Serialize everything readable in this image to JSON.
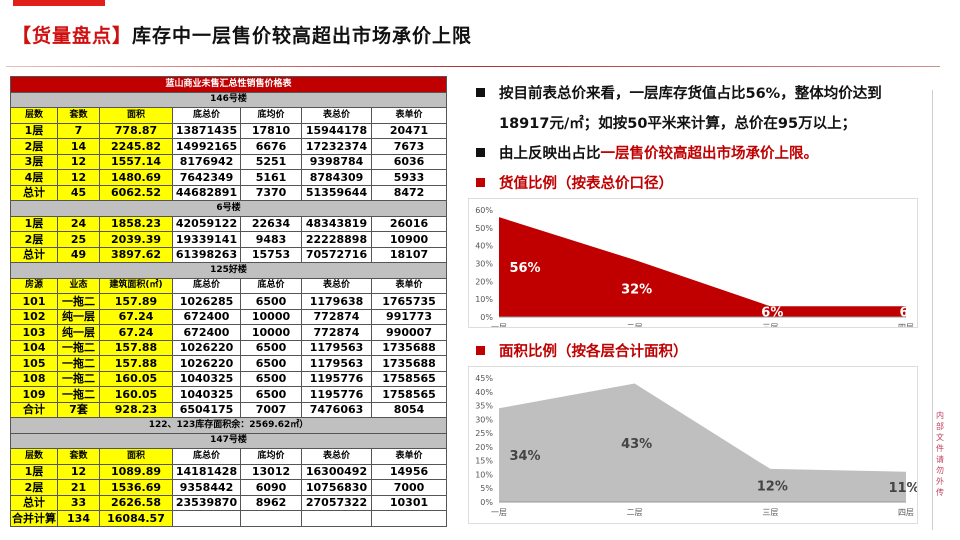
{
  "header": {
    "title_bracket": "【货量盘点】",
    "title_rest": "库存中一层售价较高超出市场承价上限"
  },
  "table": {
    "caption": "蓝山商业未售汇总性销售价格表",
    "b146": {
      "name": "146号楼",
      "headers": [
        "层数",
        "套数",
        "面积",
        "底总价",
        "底均价",
        "表总价",
        "表单价"
      ],
      "rows": [
        [
          "1层",
          "7",
          "778.87",
          "13871435",
          "17810",
          "15944178",
          "20471"
        ],
        [
          "2层",
          "14",
          "2245.82",
          "14992165",
          "6676",
          "17232374",
          "7673"
        ],
        [
          "3层",
          "12",
          "1557.14",
          "8176942",
          "5251",
          "9398784",
          "6036"
        ],
        [
          "4层",
          "12",
          "1480.69",
          "7642349",
          "5161",
          "8784309",
          "5933"
        ],
        [
          "总计",
          "45",
          "6062.52",
          "44682891",
          "7370",
          "51359644",
          "8472"
        ]
      ]
    },
    "b6": {
      "name": "6号楼",
      "rows": [
        [
          "1层",
          "24",
          "1858.23",
          "42059122",
          "22634",
          "48343819",
          "26016"
        ],
        [
          "2层",
          "25",
          "2039.39",
          "19339141",
          "9483",
          "22228898",
          "10900"
        ],
        [
          "总计",
          "49",
          "3897.62",
          "61398263",
          "15753",
          "70572716",
          "18107"
        ]
      ]
    },
    "b125": {
      "name": "125好楼",
      "headers": [
        "房源",
        "业态",
        "建筑面积(㎡)",
        "底总价",
        "底总价",
        "表总价",
        "表单价"
      ],
      "rows": [
        [
          "101",
          "一拖二",
          "157.89",
          "1026285",
          "6500",
          "1179638",
          "1765735"
        ],
        [
          "102",
          "纯一层",
          "67.24",
          "672400",
          "10000",
          "772874",
          "991773"
        ],
        [
          "103",
          "纯一层",
          "67.24",
          "672400",
          "10000",
          "772874",
          "990007"
        ],
        [
          "104",
          "一拖二",
          "157.88",
          "1026220",
          "6500",
          "1179563",
          "1735688"
        ],
        [
          "105",
          "一拖二",
          "157.88",
          "1026220",
          "6500",
          "1179563",
          "1735688"
        ],
        [
          "108",
          "一拖二",
          "160.05",
          "1040325",
          "6500",
          "1195776",
          "1758565"
        ],
        [
          "109",
          "一拖二",
          "160.05",
          "1040325",
          "6500",
          "1195776",
          "1758565"
        ],
        [
          "合计",
          "7套",
          "928.23",
          "6504175",
          "7007",
          "7476063",
          "8054"
        ]
      ],
      "note": "122、123库存面积余：2569.62㎡）"
    },
    "b147": {
      "name": "147号楼",
      "headers": [
        "层数",
        "套数",
        "面积",
        "底总价",
        "底均价",
        "表总价",
        "表单价"
      ],
      "rows": [
        [
          "1层",
          "12",
          "1089.89",
          "14181428",
          "13012",
          "16300492",
          "14956"
        ],
        [
          "2层",
          "21",
          "1536.69",
          "9358442",
          "6090",
          "10756830",
          "7000"
        ],
        [
          "总计",
          "33",
          "2626.58",
          "23539870",
          "8962",
          "27057322",
          "10301"
        ]
      ]
    },
    "combined": [
      "合并计算",
      "134",
      "16084.57"
    ]
  },
  "bullets": {
    "b1": "按目前表总价来看，一层库存货值占比56%，整体均价达到",
    "b1b": "18917元/㎡；如按50平米来计算，总价在95万以上；",
    "b2a": "由上反映出占比",
    "b2b": "一层售价较高超出市场承价上限。",
    "s1": "货值比例（按表总价口径）",
    "s2": "面积比例（按各层合计面积）"
  },
  "side_text": "内部文件 请勿外传",
  "chart_data": [
    {
      "type": "area",
      "categories": [
        "一层",
        "二层",
        "三层",
        "四层"
      ],
      "values": [
        56,
        32,
        6,
        6
      ],
      "data_labels": [
        "56%",
        "32%",
        "6%",
        "6"
      ],
      "ylim": [
        0,
        60
      ],
      "yticks": [
        "0%",
        "10%",
        "20%",
        "30%",
        "40%",
        "50%",
        "60%"
      ],
      "color": "#c00000",
      "grid": false
    },
    {
      "type": "area",
      "categories": [
        "一层",
        "二层",
        "三层",
        "四层"
      ],
      "values": [
        34,
        43,
        12,
        11
      ],
      "data_labels": [
        "34%",
        "43%",
        "12%",
        "11%"
      ],
      "ylim": [
        0,
        45
      ],
      "yticks": [
        "0%",
        "5%",
        "10%",
        "15%",
        "20%",
        "25%",
        "30%",
        "35%",
        "40%",
        "45%"
      ],
      "color": "#bfbfbf",
      "grid": false
    }
  ]
}
